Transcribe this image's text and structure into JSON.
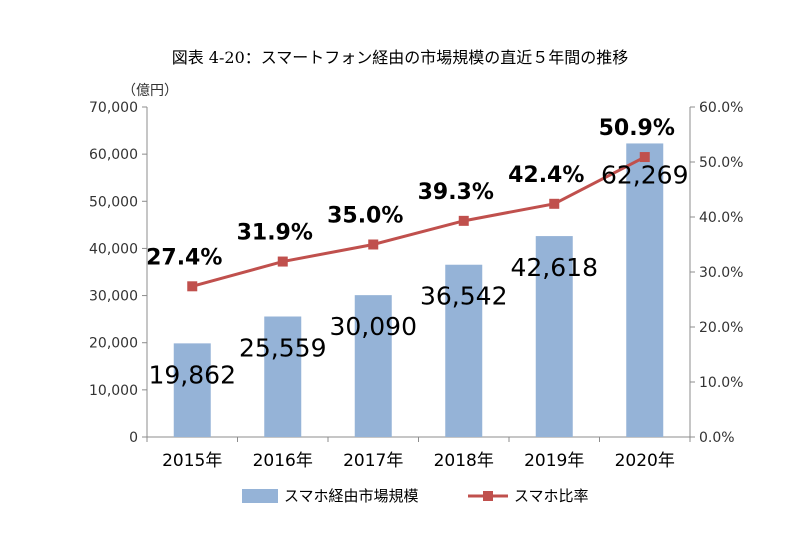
{
  "chart_data": {
    "type": "bar",
    "title": "図表 4-20：スマートフォン経由の市場規模の直近５年間の推移",
    "y_unit_label": "（億円）",
    "categories": [
      "2015年",
      "2016年",
      "2017年",
      "2018年",
      "2019年",
      "2020年"
    ],
    "y_left": {
      "range": [
        0,
        70000
      ],
      "ticks": [
        "0",
        "10,000",
        "20,000",
        "30,000",
        "40,000",
        "50,000",
        "60,000",
        "70,000"
      ]
    },
    "y_right": {
      "range": [
        0,
        60
      ],
      "ticks": [
        "0.0%",
        "10.0%",
        "20.0%",
        "30.0%",
        "40.0%",
        "50.0%",
        "60.0%"
      ]
    },
    "series": [
      {
        "name": "スマホ経由市場規模",
        "type": "bar",
        "axis": "left",
        "color": "#95b3d7",
        "values": [
          19862,
          25559,
          30090,
          36542,
          42618,
          62269
        ],
        "labels": [
          "19,862",
          "25,559",
          "30,090",
          "36,542",
          "42,618",
          "62,269"
        ]
      },
      {
        "name": "スマホ比率",
        "type": "line",
        "axis": "right",
        "color": "#c0504d",
        "values": [
          27.4,
          31.9,
          35.0,
          39.3,
          42.4,
          50.9
        ],
        "labels": [
          "27.4%",
          "31.9%",
          "35.0%",
          "39.3%",
          "42.4%",
          "50.9%"
        ]
      }
    ],
    "grid": false,
    "legend_position": "bottom"
  }
}
